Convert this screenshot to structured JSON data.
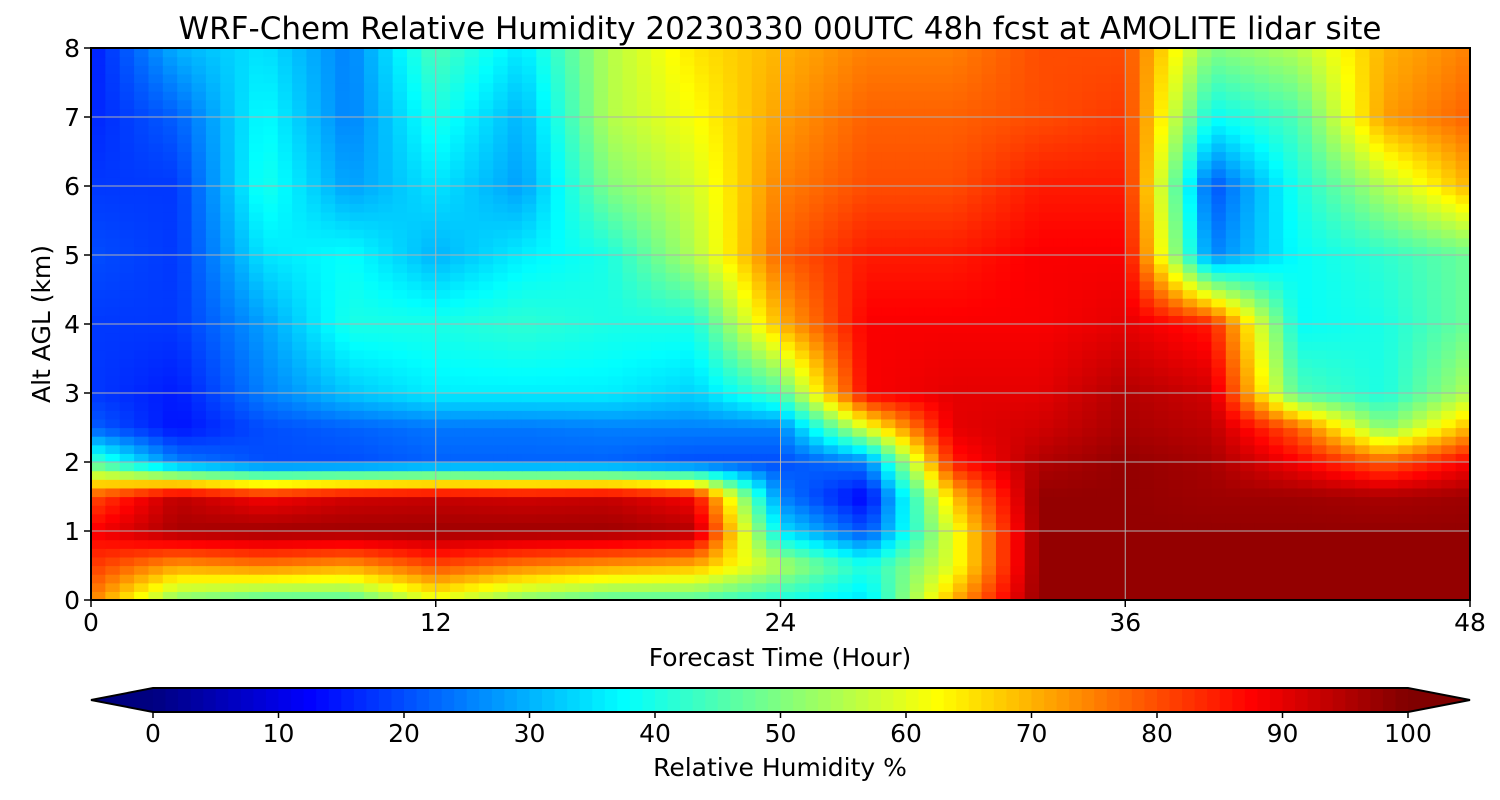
{
  "chart_data": {
    "type": "heatmap",
    "title": "WRF-Chem Relative Humidity 20230330 00UTC 48h fcst at AMOLITE lidar site",
    "xlabel": "Forecast Time (Hour)",
    "ylabel": "Alt AGL (km)",
    "xlim": [
      0,
      48
    ],
    "ylim": [
      0,
      8
    ],
    "xticks": [
      "0",
      "12",
      "24",
      "36",
      "48"
    ],
    "yticks": [
      "0",
      "1",
      "2",
      "3",
      "4",
      "5",
      "6",
      "7",
      "8"
    ],
    "grid": true,
    "colorbar": {
      "label": "Relative Humidity %",
      "colormap": "jet",
      "range": [
        0,
        100
      ],
      "ticks": [
        "0",
        "10",
        "20",
        "30",
        "40",
        "50",
        "60",
        "70",
        "80",
        "90",
        "100"
      ],
      "orientation": "horizontal",
      "extend": "both"
    },
    "x": [
      0,
      3,
      6,
      9,
      12,
      15,
      18,
      21,
      24,
      27,
      30,
      33,
      36,
      39,
      42,
      45,
      48
    ],
    "y": [
      0,
      0.5,
      1,
      1.5,
      2,
      2.5,
      3,
      4,
      5,
      6,
      7,
      8
    ],
    "z": [
      [
        75,
        50,
        45,
        45,
        60,
        50,
        45,
        45,
        40,
        35,
        70,
        98,
        98,
        98,
        98,
        98,
        98
      ],
      [
        82,
        72,
        75,
        72,
        80,
        75,
        72,
        70,
        55,
        40,
        60,
        98,
        98,
        98,
        98,
        98,
        98
      ],
      [
        88,
        96,
        97,
        97,
        97,
        97,
        97,
        95,
        35,
        20,
        60,
        98,
        98,
        98,
        98,
        98,
        98
      ],
      [
        80,
        94,
        88,
        92,
        93,
        92,
        93,
        88,
        25,
        12,
        68,
        98,
        98,
        97,
        97,
        96,
        97
      ],
      [
        45,
        25,
        20,
        20,
        22,
        22,
        22,
        20,
        20,
        25,
        85,
        95,
        98,
        96,
        88,
        78,
        88
      ],
      [
        22,
        14,
        20,
        22,
        24,
        24,
        25,
        25,
        25,
        60,
        90,
        92,
        96,
        94,
        78,
        50,
        70
      ],
      [
        18,
        15,
        25,
        32,
        36,
        36,
        36,
        33,
        45,
        88,
        90,
        90,
        95,
        92,
        45,
        40,
        55
      ],
      [
        18,
        18,
        28,
        40,
        40,
        42,
        40,
        40,
        70,
        88,
        88,
        88,
        90,
        85,
        38,
        40,
        48
      ],
      [
        20,
        18,
        35,
        38,
        30,
        36,
        40,
        55,
        78,
        85,
        85,
        88,
        88,
        25,
        38,
        42,
        48
      ],
      [
        18,
        18,
        40,
        28,
        35,
        28,
        50,
        58,
        75,
        80,
        80,
        85,
        85,
        20,
        40,
        55,
        70
      ],
      [
        16,
        22,
        38,
        25,
        40,
        30,
        55,
        62,
        72,
        78,
        78,
        80,
        82,
        38,
        45,
        72,
        78
      ],
      [
        15,
        30,
        35,
        25,
        45,
        35,
        55,
        65,
        70,
        75,
        75,
        80,
        80,
        50,
        55,
        70,
        75
      ]
    ]
  }
}
